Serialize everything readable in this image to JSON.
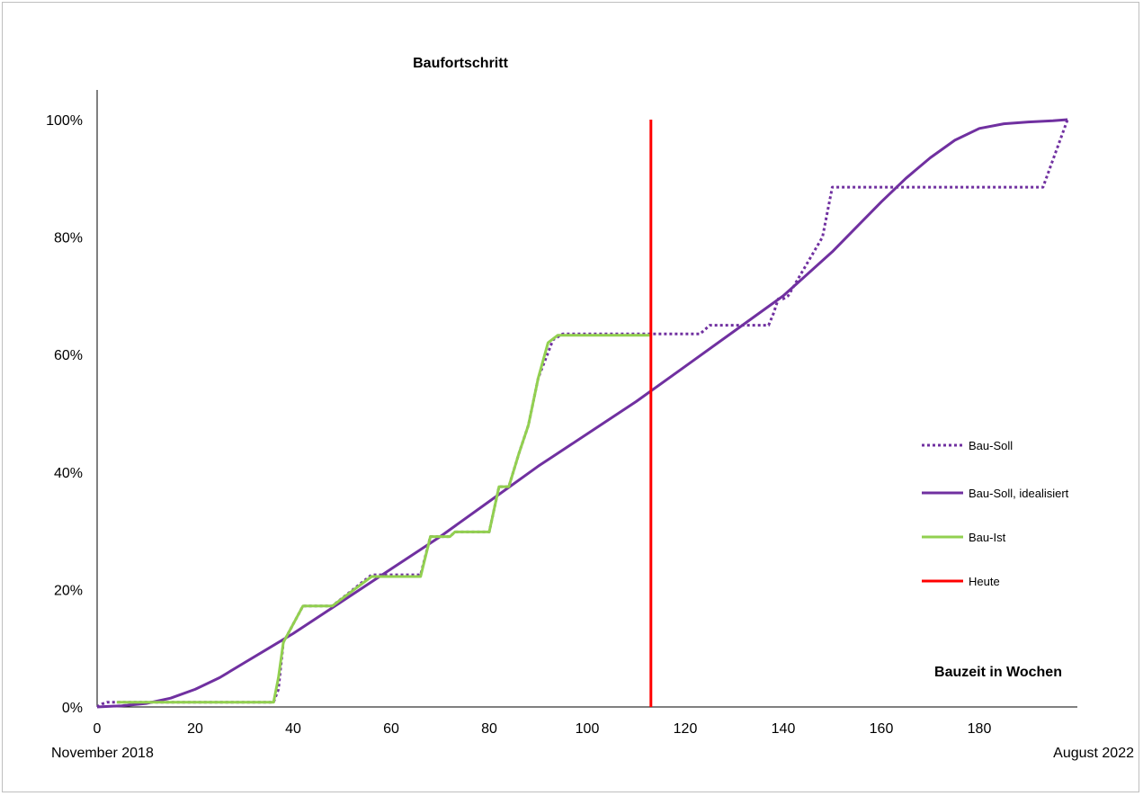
{
  "chart_data": {
    "type": "line",
    "title": "Baufortschritt",
    "xlabel": "Bauzeit in Wochen",
    "x_start_label": "November 2018",
    "x_end_label": "August 2022",
    "xlim": [
      0,
      200
    ],
    "ylim": [
      0,
      1
    ],
    "x_ticks": [
      0,
      20,
      40,
      60,
      80,
      100,
      120,
      140,
      160,
      180
    ],
    "y_ticks": [
      0,
      0.2,
      0.4,
      0.6,
      0.8,
      1.0
    ],
    "y_tick_labels": [
      "0%",
      "20%",
      "40%",
      "60%",
      "80%",
      "100%"
    ],
    "grid": false,
    "legend_position": "right",
    "series": [
      {
        "name": "Bau-Soll",
        "style": "dotted",
        "color": "#7030a0",
        "x": [
          0,
          1,
          2,
          4,
          36,
          37,
          38,
          42,
          48,
          56,
          66,
          68,
          72,
          73,
          80,
          82,
          84,
          86,
          88,
          90,
          93,
          95,
          113,
          123,
          125,
          137,
          138,
          139,
          140,
          141,
          148,
          150,
          193,
          198
        ],
        "y": [
          0.0,
          0.005,
          0.008,
          0.008,
          0.008,
          0.03,
          0.11,
          0.172,
          0.172,
          0.225,
          0.225,
          0.29,
          0.29,
          0.298,
          0.298,
          0.375,
          0.375,
          0.43,
          0.48,
          0.56,
          0.625,
          0.635,
          0.635,
          0.635,
          0.65,
          0.65,
          0.67,
          0.695,
          0.695,
          0.7,
          0.8,
          0.885,
          0.885,
          1.0
        ]
      },
      {
        "name": "Bau-Soll, idealisiert",
        "style": "solid",
        "color": "#7030a0",
        "x": [
          0,
          5,
          10,
          15,
          20,
          25,
          30,
          35,
          40,
          50,
          60,
          70,
          80,
          90,
          100,
          110,
          120,
          130,
          140,
          150,
          160,
          165,
          170,
          175,
          180,
          185,
          190,
          195,
          198
        ],
        "y": [
          0.0,
          0.002,
          0.006,
          0.015,
          0.03,
          0.05,
          0.075,
          0.1,
          0.125,
          0.18,
          0.235,
          0.29,
          0.35,
          0.41,
          0.465,
          0.52,
          0.58,
          0.64,
          0.7,
          0.775,
          0.86,
          0.9,
          0.935,
          0.965,
          0.985,
          0.993,
          0.996,
          0.998,
          1.0
        ]
      },
      {
        "name": "Bau-Ist",
        "style": "solid",
        "color": "#92d050",
        "x": [
          4,
          36,
          37,
          38,
          42,
          48,
          56,
          66,
          68,
          72,
          73,
          80,
          82,
          84,
          86,
          88,
          90,
          92,
          94,
          113
        ],
        "y": [
          0.008,
          0.008,
          0.05,
          0.11,
          0.172,
          0.172,
          0.222,
          0.222,
          0.29,
          0.29,
          0.298,
          0.298,
          0.375,
          0.375,
          0.43,
          0.48,
          0.56,
          0.62,
          0.633,
          0.633
        ]
      },
      {
        "name": "Heute",
        "style": "solid",
        "color": "#ff0000",
        "x": [
          113,
          113
        ],
        "y": [
          0.0,
          1.0
        ]
      }
    ]
  }
}
